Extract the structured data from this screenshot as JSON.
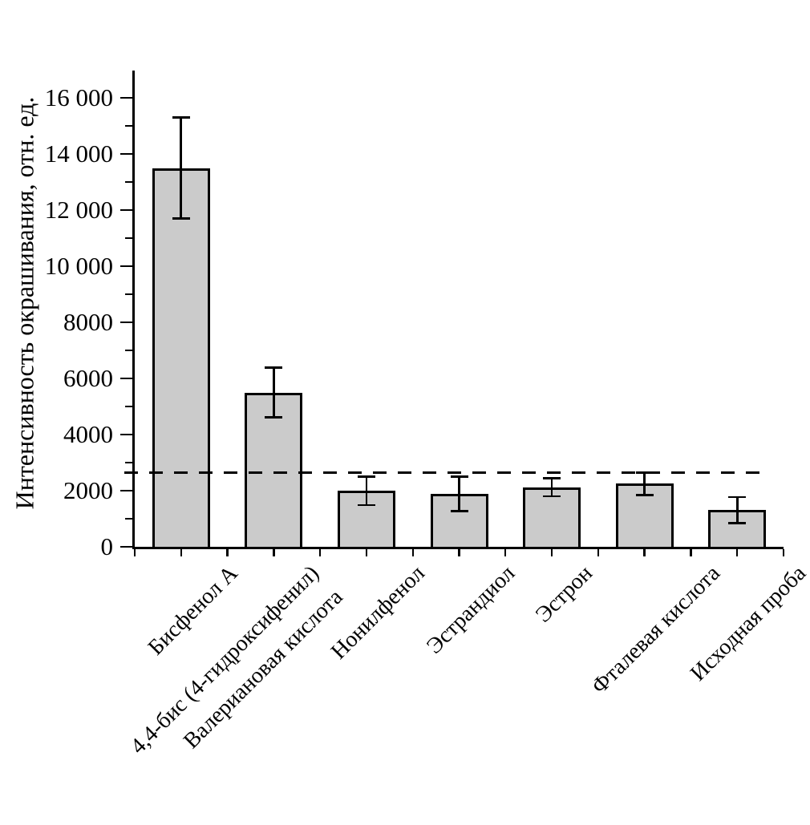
{
  "chart_data": {
    "type": "bar",
    "title": "",
    "xlabel": "",
    "ylabel": "Интенсивность окрашивания, отн. ед.",
    "ylim": [
      0,
      16000
    ],
    "ytick_step": 2000,
    "ytick_labels": [
      "0",
      "2000",
      "4000",
      "6000",
      "8000",
      "10 000",
      "12 000",
      "14 000",
      "16 000"
    ],
    "minor_ticks_every": 1000,
    "grid": false,
    "legend": null,
    "categories": [
      "Бисфенол А",
      "4,4-бис (4-гидроксифенил)\nВалериановая кислота",
      "Нонилфенол",
      "Эстрандиол",
      "Эстрон",
      "Фталевая кислота",
      "Исходная проба"
    ],
    "values": [
      13500,
      5500,
      2000,
      1890,
      2120,
      2250,
      1310
    ],
    "errors": [
      1800,
      880,
      510,
      610,
      320,
      400,
      460
    ],
    "threshold_line": {
      "value": 2650,
      "style": "dashed",
      "color": "#000000"
    },
    "hatched_bars": [
      0
    ],
    "bar_fill": "#cbcbcb",
    "bar_border": "#000000",
    "axis_color": "#000000"
  }
}
